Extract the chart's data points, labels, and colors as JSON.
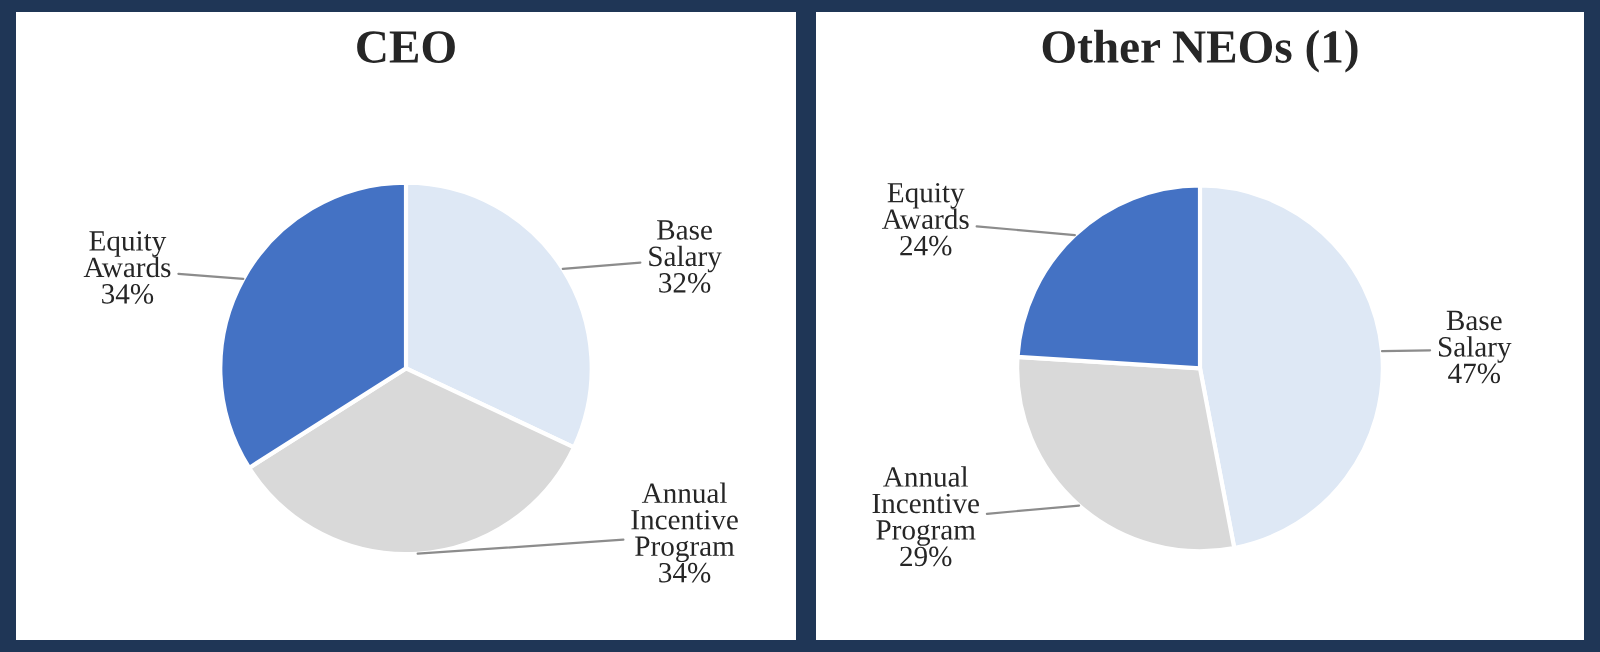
{
  "chart_data": [
    {
      "type": "pie",
      "title": "CEO",
      "categories": [
        "Base Salary",
        "Annual Incentive Program",
        "Equity Awards"
      ],
      "values": [
        32,
        34,
        34
      ],
      "colors": [
        "#dee8f5",
        "#d9d9d9",
        "#4472c4"
      ],
      "value_labels": [
        "32%",
        "34%",
        "34%"
      ],
      "legend": false
    },
    {
      "type": "pie",
      "title": "Other NEOs (1)",
      "categories": [
        "Base Salary",
        "Annual Incentive Program",
        "Equity Awards"
      ],
      "values": [
        47,
        29,
        24
      ],
      "colors": [
        "#dee8f5",
        "#d9d9d9",
        "#4472c4"
      ],
      "value_labels": [
        "47%",
        "29%",
        "24%"
      ],
      "legend": false
    }
  ]
}
